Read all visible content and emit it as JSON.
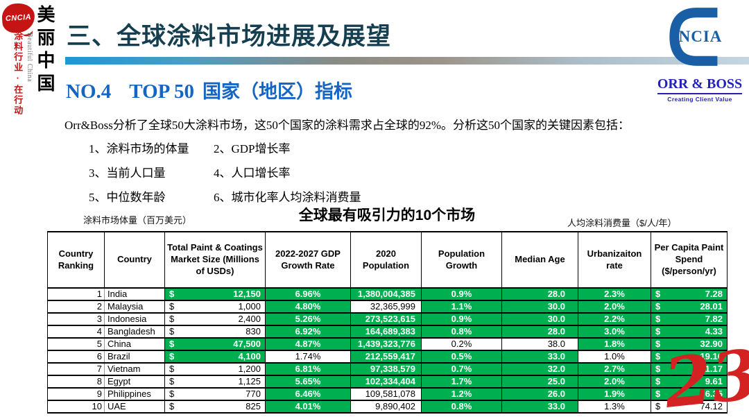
{
  "branding_left": {
    "stamp_text": "CNCIA",
    "title_cn": "美丽中国",
    "title_en": "Beautiful China",
    "slogan": "涂料行业·在行动"
  },
  "branding_right": {
    "mark_text": "NCIA",
    "company": "ORR & BOSS",
    "tagline": "Creating Client Value"
  },
  "header": {
    "section_title": "三、全球涂料市场进展及展望",
    "subtitle_no": "NO.4",
    "subtitle_top": "TOP 50",
    "subtitle_cn": "国家（地区）指标"
  },
  "intro": {
    "paragraph": "Orr&Boss分析了全球50大涂料市场，这50个国家的涂料需求占全球的92%。分析这50个国家的关键因素包括：",
    "factors": [
      "1、涂料市场的体量",
      "2、GDP增长率",
      "3、当前人口量",
      "4、人口增长率",
      "5、中位数年龄",
      "6、城市化率人均涂料消费量"
    ]
  },
  "table_section": {
    "left_caption": "涂料市场体量（百万美元）",
    "title": "全球最有吸引力的10个市场",
    "right_caption": "人均涂料消费量（$/人/年）"
  },
  "table": {
    "currency_symbol": "$",
    "headers": [
      "Country Ranking",
      "Country",
      "Total Paint & Coatings Market Size (Millions of USDs)",
      "2022-2027 GDP Growth Rate",
      "2020 Population",
      "Population Growth",
      "Median Age",
      "Urbanizaiton rate",
      "Per Capita Paint Spend ($/person/yr)"
    ],
    "rows": [
      {
        "rank": "1",
        "country": "India",
        "market": "12,150",
        "gdp": "6.96%",
        "pop": "1,380,004,385",
        "popg": "0.9%",
        "age": "28.0",
        "urb": "2.3%",
        "spend": "7.28",
        "hl": [
          1,
          1,
          1,
          1,
          1,
          1,
          1
        ]
      },
      {
        "rank": "2",
        "country": "Malaysia",
        "market": "1,000",
        "gdp": "4.80%",
        "pop": "32,365,999",
        "popg": "1.1%",
        "age": "30.0",
        "urb": "2.0%",
        "spend": "28.01",
        "hl": [
          0,
          1,
          0,
          1,
          1,
          1,
          1
        ]
      },
      {
        "rank": "3",
        "country": "Indonesia",
        "market": "2,400",
        "gdp": "5.26%",
        "pop": "273,523,615",
        "popg": "0.9%",
        "age": "30.0",
        "urb": "2.2%",
        "spend": "7.82",
        "hl": [
          0,
          1,
          1,
          1,
          1,
          1,
          1
        ]
      },
      {
        "rank": "4",
        "country": "Bangladesh",
        "market": "830",
        "gdp": "6.92%",
        "pop": "164,689,383",
        "popg": "0.8%",
        "age": "28.0",
        "urb": "3.0%",
        "spend": "4.33",
        "hl": [
          0,
          1,
          1,
          1,
          1,
          1,
          1
        ]
      },
      {
        "rank": "5",
        "country": "China",
        "market": "47,500",
        "gdp": "4.87%",
        "pop": "1,439,323,776",
        "popg": "0.2%",
        "age": "38.0",
        "urb": "1.8%",
        "spend": "32.90",
        "hl": [
          1,
          1,
          1,
          0,
          0,
          1,
          1
        ]
      },
      {
        "rank": "6",
        "country": "Brazil",
        "market": "4,100",
        "gdp": "1.74%",
        "pop": "212,559,417",
        "popg": "0.5%",
        "age": "33.0",
        "urb": "1.0%",
        "spend": "19.16",
        "hl": [
          1,
          0,
          1,
          1,
          1,
          0,
          1
        ]
      },
      {
        "rank": "7",
        "country": "Vietnam",
        "market": "1,200",
        "gdp": "6.81%",
        "pop": "97,338,579",
        "popg": "0.7%",
        "age": "32.0",
        "urb": "2.7%",
        "spend": "11.17",
        "hl": [
          0,
          1,
          1,
          1,
          1,
          1,
          1
        ]
      },
      {
        "rank": "8",
        "country": "Egypt",
        "market": "1,125",
        "gdp": "5.65%",
        "pop": "102,334,404",
        "popg": "1.7%",
        "age": "25.0",
        "urb": "2.0%",
        "spend": "9.61",
        "hl": [
          0,
          1,
          1,
          1,
          1,
          1,
          1
        ]
      },
      {
        "rank": "9",
        "country": "Philippines",
        "market": "770",
        "gdp": "6.46%",
        "pop": "109,581,078",
        "popg": "1.2%",
        "age": "26.0",
        "urb": "1.9%",
        "spend": "6.35",
        "hl": [
          0,
          1,
          0,
          1,
          1,
          1,
          1
        ]
      },
      {
        "rank": "10",
        "country": "UAE",
        "market": "825",
        "gdp": "4.01%",
        "pop": "9,890,402",
        "popg": "0.8%",
        "age": "33.0",
        "urb": "1.3%",
        "spend": "74.12",
        "hl": [
          0,
          1,
          0,
          1,
          1,
          0,
          0
        ]
      }
    ]
  },
  "page_number": "23",
  "colors": {
    "highlight_green": "#00B050",
    "title_teal": "#153F50",
    "subtitle_blue": "#1565C4",
    "logo_blue": "#1A5FA5",
    "company_blue": "#2222BB",
    "stamp_red": "#C41414",
    "page_red": "#D42222"
  }
}
